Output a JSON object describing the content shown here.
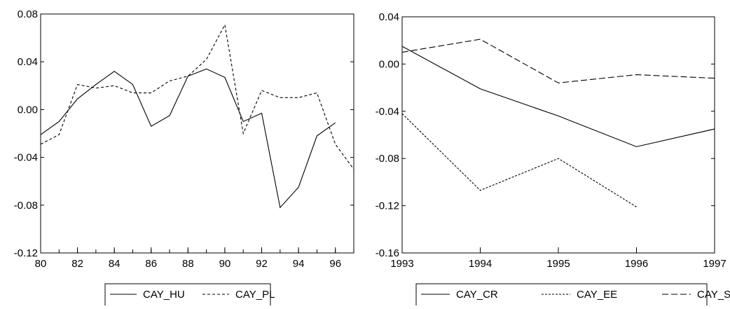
{
  "chart_data": [
    {
      "type": "line",
      "title": "",
      "xlabel": "",
      "ylabel": "",
      "x": [
        80,
        81,
        82,
        83,
        84,
        85,
        86,
        87,
        88,
        89,
        90,
        91,
        92,
        93,
        94,
        95,
        96,
        97
      ],
      "xlim": [
        80,
        97
      ],
      "ylim": [
        -0.12,
        0.08
      ],
      "x_ticks": [
        "80",
        "82",
        "84",
        "86",
        "88",
        "90",
        "92",
        "94",
        "96"
      ],
      "y_ticks": [
        "0.08",
        "0.04",
        "0.00",
        "-0.04",
        "-0.08",
        "-0.12"
      ],
      "grid": false,
      "legend_position": "bottom",
      "series": [
        {
          "name": "CAY_HU",
          "style": "solid",
          "values": [
            -0.021,
            -0.01,
            0.009,
            0.021,
            0.032,
            0.021,
            -0.014,
            -0.005,
            0.028,
            0.034,
            0.027,
            -0.01,
            -0.003,
            -0.082,
            -0.065,
            -0.022,
            -0.011,
            null
          ]
        },
        {
          "name": "CAY_PL",
          "style": "dashed",
          "values": [
            -0.029,
            -0.021,
            0.021,
            0.018,
            0.02,
            0.014,
            0.014,
            0.024,
            0.028,
            0.042,
            0.071,
            -0.02,
            0.016,
            0.01,
            0.01,
            0.014,
            -0.029,
            -0.05
          ]
        }
      ]
    },
    {
      "type": "line",
      "title": "",
      "xlabel": "",
      "ylabel": "",
      "x": [
        1993,
        1994,
        1995,
        1996,
        1997
      ],
      "xlim": [
        1993,
        1997
      ],
      "ylim": [
        -0.16,
        0.04
      ],
      "x_ticks": [
        "1993",
        "1994",
        "1995",
        "1996",
        "1997"
      ],
      "y_ticks": [
        "0.04",
        "0.00",
        "-0.04",
        "-0.08",
        "-0.12",
        "-0.16"
      ],
      "grid": false,
      "legend_position": "bottom",
      "series": [
        {
          "name": "CAY_CR",
          "style": "solid",
          "values": [
            0.015,
            -0.021,
            -0.044,
            -0.07,
            -0.055
          ]
        },
        {
          "name": "CAY_EE",
          "style": "dotted",
          "values": [
            -0.042,
            -0.107,
            -0.08,
            -0.121,
            null
          ]
        },
        {
          "name": "CAY_SL",
          "style": "longdash",
          "values": [
            0.01,
            0.021,
            -0.016,
            -0.009,
            -0.012
          ]
        }
      ]
    }
  ]
}
